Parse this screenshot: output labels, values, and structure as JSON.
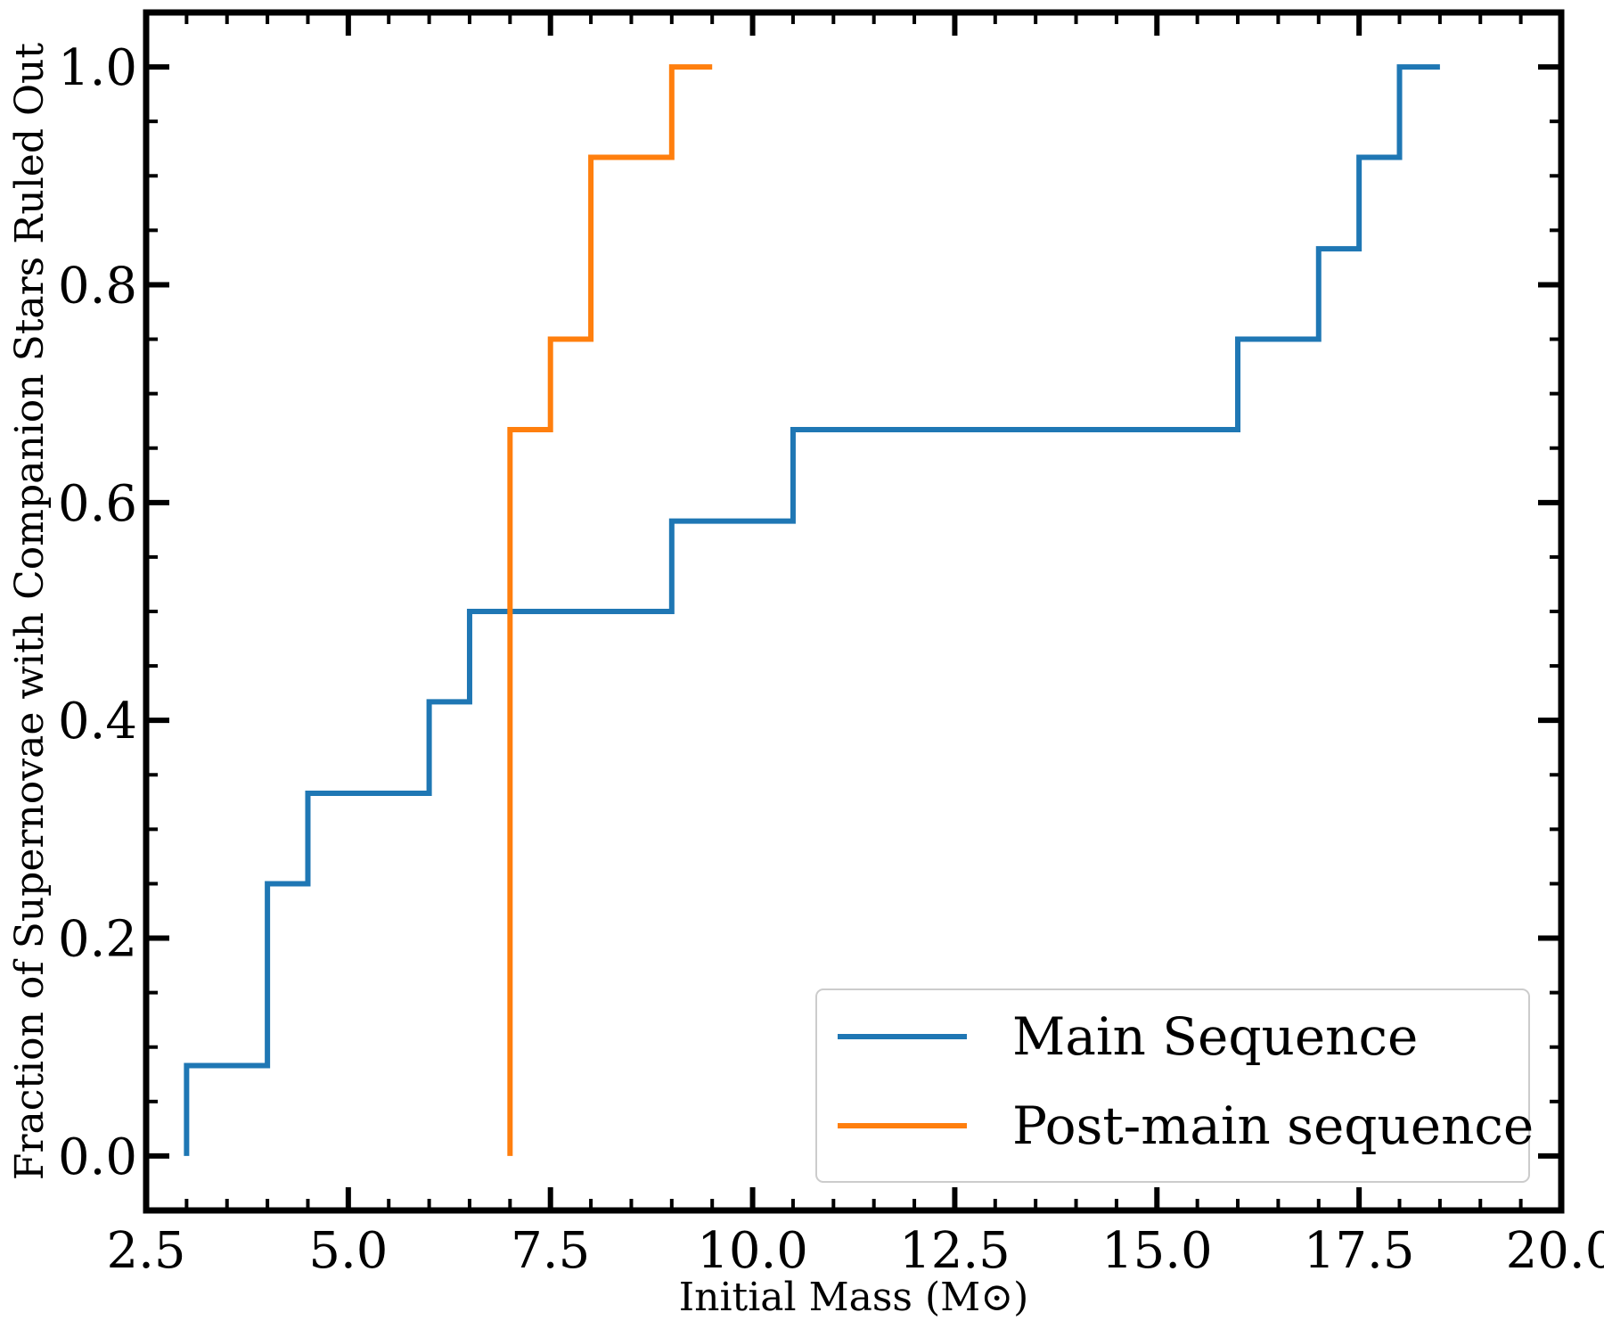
{
  "chart_data": {
    "type": "line",
    "step": "post",
    "xlabel": "Initial Mass (M⊙)",
    "ylabel": "Fraction of Supernovae with Companion Stars Ruled Out",
    "xlim": [
      2.5,
      20.0
    ],
    "ylim": [
      -0.05,
      1.05
    ],
    "xticks": [
      2.5,
      5.0,
      7.5,
      10.0,
      12.5,
      15.0,
      17.5,
      20.0
    ],
    "xtick_labels": [
      "2.5",
      "5.0",
      "7.5",
      "10.0",
      "12.5",
      "15.0",
      "17.5",
      "20.0"
    ],
    "yticks": [
      0.0,
      0.2,
      0.4,
      0.6,
      0.8,
      1.0
    ],
    "ytick_labels": [
      "0.0",
      "0.2",
      "0.4",
      "0.6",
      "0.8",
      "1.0"
    ],
    "grid": false,
    "legend_position": "bottom-right",
    "series": [
      {
        "name": "Main Sequence",
        "color": "#1f77b4",
        "x": [
          3.0,
          3.0,
          4.0,
          4.5,
          6.0,
          6.5,
          9.0,
          10.5,
          16.0,
          17.0,
          17.5,
          18.0,
          18.5
        ],
        "y": [
          0.0,
          0.083,
          0.25,
          0.333,
          0.417,
          0.5,
          0.583,
          0.667,
          0.75,
          0.833,
          0.917,
          1.0,
          1.0
        ]
      },
      {
        "name": "Post-main sequence",
        "color": "#ff7f0e",
        "x": [
          7.0,
          7.0,
          7.5,
          8.0,
          9.0,
          9.5
        ],
        "y": [
          0.0,
          0.667,
          0.75,
          0.917,
          1.0,
          1.0
        ]
      }
    ]
  }
}
